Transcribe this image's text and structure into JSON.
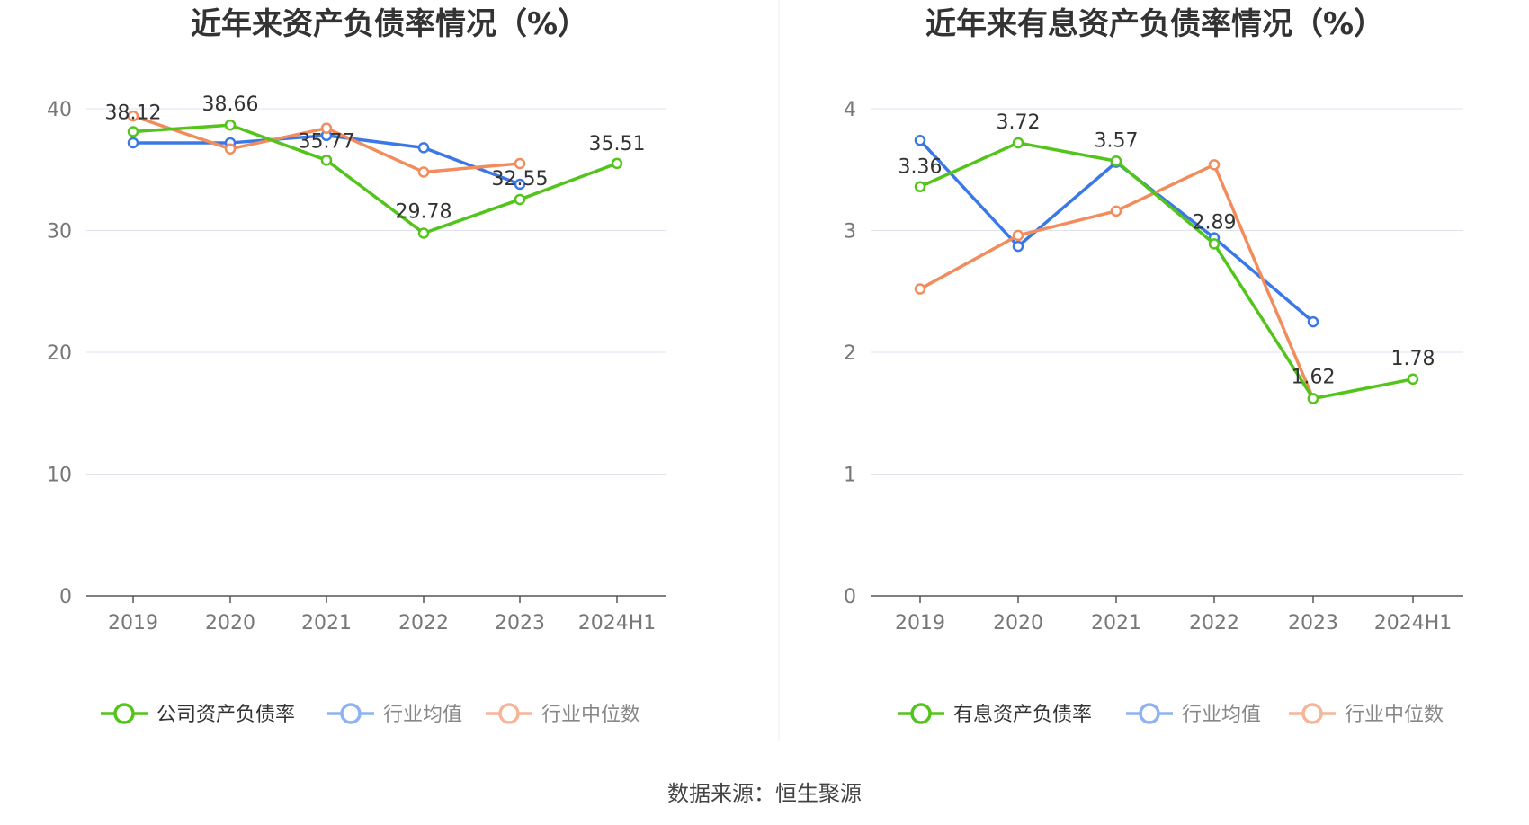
{
  "source_text": "数据来源：恒生聚源",
  "chart_data": [
    {
      "type": "line",
      "title": "近年来资产负债率情况（%）",
      "categories": [
        "2019",
        "2020",
        "2021",
        "2022",
        "2023",
        "2024H1"
      ],
      "yticks": [
        "0",
        "10",
        "20",
        "30",
        "40"
      ],
      "ylim": [
        0,
        40
      ],
      "grid": true,
      "legend_position": "bottom",
      "series": [
        {
          "name": "公司资产负债率",
          "color": "#52c41a",
          "labeled": true,
          "values": [
            38.12,
            38.66,
            35.77,
            29.78,
            32.55,
            35.51
          ],
          "labels": [
            "38.12",
            "38.66",
            "35.77",
            "29.78",
            "32.55",
            "35.51"
          ]
        },
        {
          "name": "行业均值",
          "color": "#3b78e7",
          "labeled": false,
          "values": [
            37.2,
            37.2,
            37.8,
            36.8,
            33.8,
            null
          ]
        },
        {
          "name": "行业中位数",
          "color": "#f28c5d",
          "labeled": false,
          "values": [
            39.4,
            36.7,
            38.4,
            34.8,
            35.5,
            null
          ]
        }
      ]
    },
    {
      "type": "line",
      "title": "近年来有息资产负债率情况（%）",
      "categories": [
        "2019",
        "2020",
        "2021",
        "2022",
        "2023",
        "2024H1"
      ],
      "yticks": [
        "0",
        "1",
        "2",
        "3",
        "4"
      ],
      "ylim": [
        0,
        4
      ],
      "grid": true,
      "legend_position": "bottom",
      "series": [
        {
          "name": "有息资产负债率",
          "color": "#52c41a",
          "labeled": true,
          "values": [
            3.36,
            3.72,
            3.57,
            2.89,
            1.62,
            1.78
          ],
          "labels": [
            "3.36",
            "3.72",
            "3.57",
            "2.89",
            "1.62",
            "1.78"
          ]
        },
        {
          "name": "行业均值",
          "color": "#3b78e7",
          "labeled": false,
          "values": [
            3.74,
            2.87,
            3.56,
            2.94,
            2.25,
            null
          ]
        },
        {
          "name": "行业中位数",
          "color": "#f28c5d",
          "labeled": false,
          "values": [
            2.52,
            2.96,
            3.16,
            3.54,
            1.62,
            null
          ]
        }
      ]
    }
  ]
}
